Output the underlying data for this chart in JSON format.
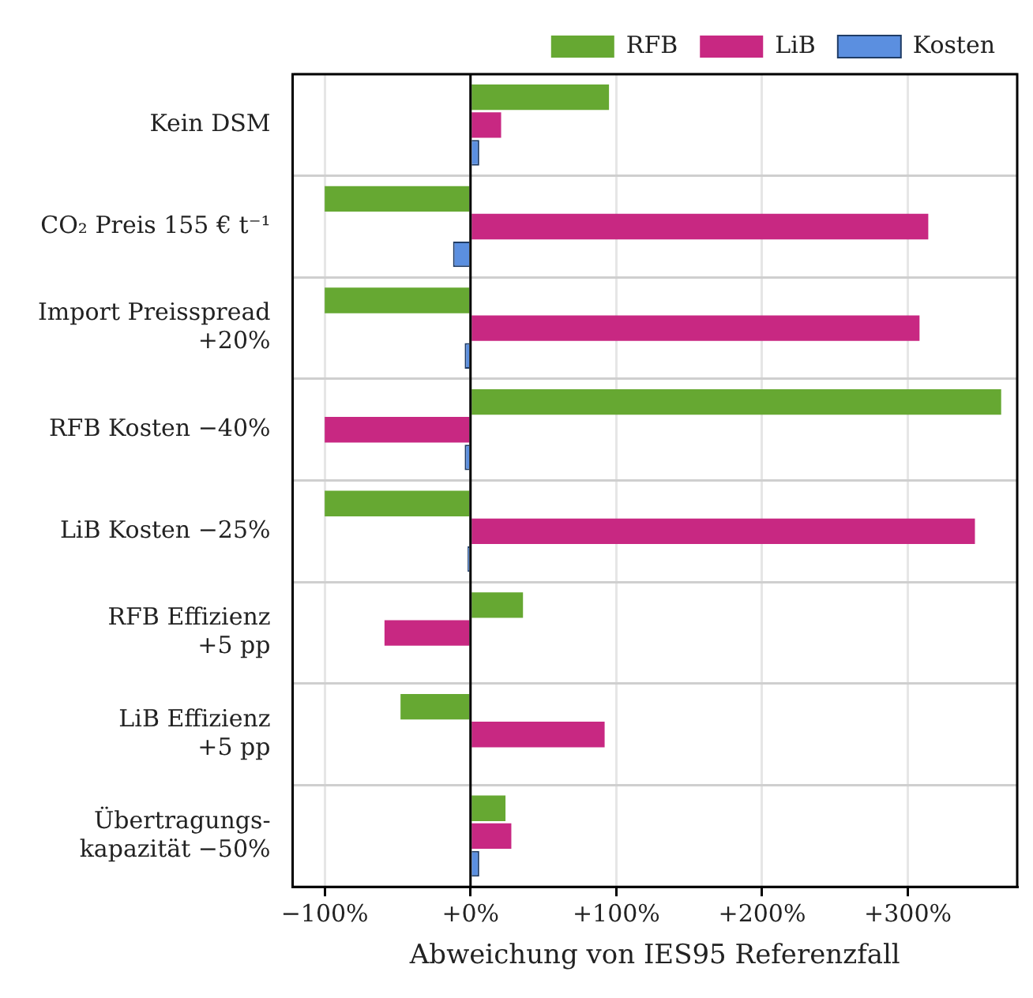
{
  "chart_data": {
    "type": "bar",
    "orientation": "horizontal",
    "xlabel": "Abweichung von IES95 Referenzfall",
    "categories": [
      "Kein DSM",
      "CO₂ Preis 155 € t⁻¹",
      "Import Preisspread\n+20%",
      "RFB Kosten −40%",
      "LiB Kosten −25%",
      "RFB Effizienz\n+5 pp",
      "LiB Effizienz\n+5 pp",
      "Übertragungs-\nkapazität −50%"
    ],
    "series": [
      {
        "name": "RFB",
        "color": "#66a832",
        "values": [
          95,
          -100,
          -100,
          364,
          -100,
          36,
          -48,
          24
        ]
      },
      {
        "name": "LiB",
        "color": "#c82882",
        "values": [
          21,
          314,
          308,
          -100,
          346,
          -59,
          92,
          28
        ]
      },
      {
        "name": "Kosten",
        "color": "#5b8fe0",
        "values": [
          6,
          -12,
          -4,
          -4,
          -2,
          0,
          0,
          6
        ]
      }
    ],
    "xlim": [
      -122,
      375
    ],
    "xticks": [
      {
        "value": -100,
        "label": "−100%"
      },
      {
        "value": 0,
        "label": "+0%"
      },
      {
        "value": 100,
        "label": "+100%"
      },
      {
        "value": 200,
        "label": "+200%"
      },
      {
        "value": 300,
        "label": "+300%"
      }
    ],
    "ref_lines": [
      {
        "axis": "x",
        "value": 0,
        "color": "#000000"
      }
    ],
    "grid": true,
    "legend": "top right"
  }
}
